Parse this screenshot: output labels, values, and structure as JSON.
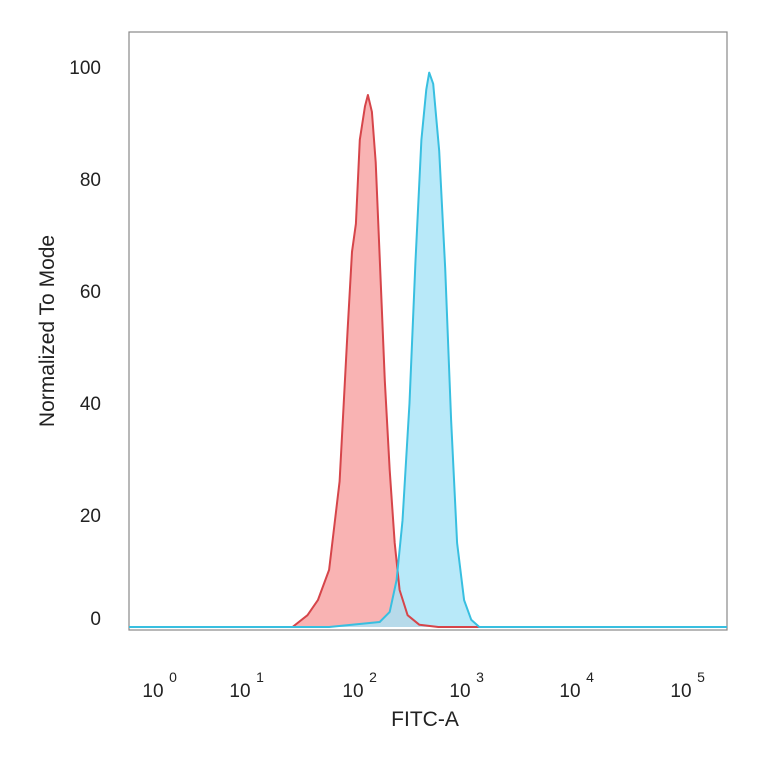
{
  "chart_data": {
    "type": "area",
    "title": "",
    "xlabel": "FITC-A",
    "ylabel": "Normalized To Mode",
    "x_scale": "log (biexponential display)",
    "xlim": [
      1,
      100000
    ],
    "ylim": [
      0,
      100
    ],
    "grid": false,
    "legend": "none",
    "y_ticks": [
      "0",
      "20",
      "40",
      "60",
      "80",
      "100"
    ],
    "x_ticks": [
      {
        "base": "10",
        "exp": "0"
      },
      {
        "base": "10",
        "exp": "1"
      },
      {
        "base": "10",
        "exp": "2"
      },
      {
        "base": "10",
        "exp": "3"
      },
      {
        "base": "10",
        "exp": "4"
      },
      {
        "base": "10",
        "exp": "5"
      }
    ],
    "series": [
      {
        "color_fill": "#f8a0a0",
        "color_line": "#d6454a",
        "points": [
          [
            28,
            0
          ],
          [
            38,
            2.1
          ],
          [
            47,
            4.8
          ],
          [
            59,
            10.2
          ],
          [
            73,
            26
          ],
          [
            86,
            53
          ],
          [
            94,
            67
          ],
          [
            102,
            72
          ],
          [
            111,
            87
          ],
          [
            124,
            93
          ],
          [
            132,
            95
          ],
          [
            144,
            92
          ],
          [
            156,
            83
          ],
          [
            170,
            66
          ],
          [
            190,
            44
          ],
          [
            211,
            28
          ],
          [
            235,
            15
          ],
          [
            261,
            6.6
          ],
          [
            310,
            2.1
          ],
          [
            400,
            0.4
          ],
          [
            600,
            0
          ]
        ]
      },
      {
        "color_fill": "#a6e3f8",
        "color_line": "#38bfe0",
        "points": [
          [
            59,
            0
          ],
          [
            170,
            0.9
          ],
          [
            211,
            2.7
          ],
          [
            245,
            8.4
          ],
          [
            278,
            19
          ],
          [
            323,
            40
          ],
          [
            367,
            65
          ],
          [
            417,
            87
          ],
          [
            464,
            96
          ],
          [
            494,
            99
          ],
          [
            538,
            97
          ],
          [
            612,
            85
          ],
          [
            697,
            64
          ],
          [
            791,
            37
          ],
          [
            900,
            15
          ],
          [
            1045,
            4.8
          ],
          [
            1212,
            1.3
          ],
          [
            1435,
            0
          ]
        ]
      }
    ]
  }
}
